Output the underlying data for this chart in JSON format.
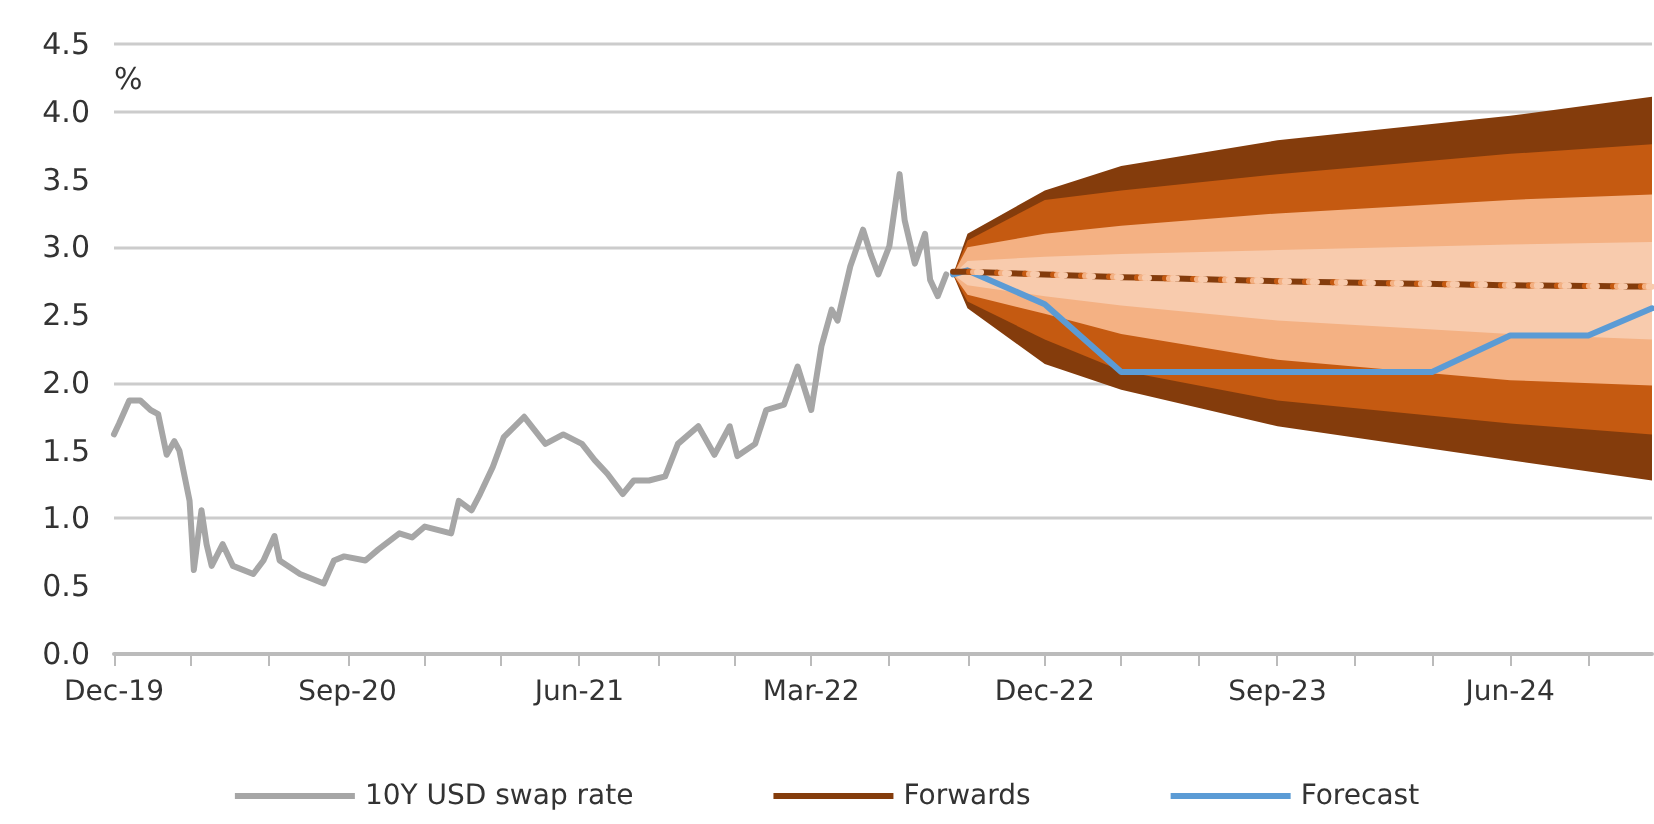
{
  "chart_data": {
    "type": "line",
    "ylabel": "%",
    "marker": "none",
    "grid": "y",
    "legend": "bottom",
    "xlim": [
      "2019-12-01",
      "2024-11-15"
    ],
    "xticks": [
      {
        "value": "2019-12-01",
        "label": "Dec-19"
      },
      {
        "value": "2020-03-01",
        "label": null
      },
      {
        "value": "2020-06-01",
        "label": null
      },
      {
        "value": "2020-09-01",
        "label": "Sep-20"
      },
      {
        "value": "2020-12-01",
        "label": null
      },
      {
        "value": "2021-03-01",
        "label": null
      },
      {
        "value": "2021-06-01",
        "label": "Jun-21"
      },
      {
        "value": "2021-09-01",
        "label": null
      },
      {
        "value": "2021-12-01",
        "label": null
      },
      {
        "value": "2022-03-01",
        "label": "Mar-22"
      },
      {
        "value": "2022-06-01",
        "label": null
      },
      {
        "value": "2022-09-01",
        "label": null
      },
      {
        "value": "2022-12-01",
        "label": "Dec-22"
      },
      {
        "value": "2023-03-01",
        "label": null
      },
      {
        "value": "2023-06-01",
        "label": null
      },
      {
        "value": "2023-09-01",
        "label": "Sep-23"
      },
      {
        "value": "2023-12-01",
        "label": null
      },
      {
        "value": "2024-03-01",
        "label": null
      },
      {
        "value": "2024-06-01",
        "label": "Jun-24"
      },
      {
        "value": "2024-09-01",
        "label": null
      }
    ],
    "ylim": [
      0,
      4.5
    ],
    "yticks": [
      {
        "value": 0,
        "label": "0.0"
      },
      {
        "value": 0.5,
        "label": "0.5"
      },
      {
        "value": 1,
        "label": "1.0"
      },
      {
        "value": 1.5,
        "label": "1.5"
      },
      {
        "value": 2,
        "label": "2.0"
      },
      {
        "value": 2.5,
        "label": "2.5"
      },
      {
        "value": 3,
        "label": "3.0"
      },
      {
        "value": 3.5,
        "label": "3.5"
      },
      {
        "value": 4,
        "label": "4.0"
      },
      {
        "value": 4.5,
        "label": "4.5"
      }
    ],
    "series": [
      {
        "name": "10Y USD swap rate",
        "color": "#a6a6a6",
        "line_style": "solid",
        "x": [
          "2019-12-01",
          "2019-12-07",
          "2019-12-19",
          "2020-01-01",
          "2020-01-13",
          "2020-01-22",
          "2020-02-01",
          "2020-02-10",
          "2020-02-16",
          "2020-02-28",
          "2020-03-04",
          "2020-03-13",
          "2020-03-19",
          "2020-03-25",
          "2020-04-07",
          "2020-04-19",
          "2020-05-13",
          "2020-05-25",
          "2020-06-07",
          "2020-06-13",
          "2020-07-07",
          "2020-08-04",
          "2020-08-16",
          "2020-08-28",
          "2020-09-22",
          "2020-10-07",
          "2020-11-01",
          "2020-11-16",
          "2020-12-01",
          "2021-01-01",
          "2021-01-10",
          "2021-01-25",
          "2021-02-04",
          "2021-02-19",
          "2021-03-04",
          "2021-03-28",
          "2021-04-22",
          "2021-05-13",
          "2021-06-04",
          "2021-06-19",
          "2021-07-04",
          "2021-07-22",
          "2021-08-04",
          "2021-08-22",
          "2021-09-10",
          "2021-09-25",
          "2021-10-19",
          "2021-11-07",
          "2021-11-25",
          "2021-12-04",
          "2021-12-25",
          "2022-01-07",
          "2022-01-28",
          "2022-02-13",
          "2022-03-01",
          "2022-03-13",
          "2022-03-25",
          "2022-04-01",
          "2022-04-16",
          "2022-05-01",
          "2022-05-10",
          "2022-05-19",
          "2022-06-01",
          "2022-06-13",
          "2022-06-19",
          "2022-07-01",
          "2022-07-13",
          "2022-07-19",
          "2022-07-28",
          "2022-08-07"
        ],
        "values": [
          1.62,
          1.7,
          1.87,
          1.87,
          1.8,
          1.77,
          1.47,
          1.57,
          1.5,
          1.13,
          0.62,
          1.06,
          0.81,
          0.65,
          0.81,
          0.65,
          0.59,
          0.69,
          0.87,
          0.69,
          0.59,
          0.52,
          0.69,
          0.72,
          0.69,
          0.77,
          0.89,
          0.86,
          0.94,
          0.89,
          1.13,
          1.06,
          1.18,
          1.38,
          1.6,
          1.75,
          1.55,
          1.62,
          1.55,
          1.43,
          1.33,
          1.18,
          1.28,
          1.28,
          1.31,
          1.55,
          1.68,
          1.47,
          1.68,
          1.46,
          1.55,
          1.8,
          1.84,
          2.12,
          1.8,
          2.27,
          2.54,
          2.46,
          2.86,
          3.13,
          2.95,
          2.8,
          3.01,
          3.54,
          3.2,
          2.88,
          3.1,
          2.76,
          2.64,
          2.8
        ]
      },
      {
        "name": "Forwards",
        "color": "#843c0c",
        "line_style": "dashed",
        "x": [
          "2022-08-15",
          "2022-09-01",
          "2022-12-01",
          "2023-03-01",
          "2023-09-01",
          "2024-06-01",
          "2024-11-15"
        ],
        "values": [
          2.82,
          2.82,
          2.8,
          2.78,
          2.75,
          2.72,
          2.71
        ],
        "upper": [
          2.8,
          3.1,
          3.42,
          3.6,
          3.79,
          3.97,
          4.11
        ],
        "lower": [
          2.8,
          2.55,
          2.14,
          1.95,
          1.68,
          1.43,
          1.28
        ]
      },
      {
        "color": "#c55a11",
        "line_style": "dashed",
        "x": [
          "2022-08-15",
          "2022-09-01",
          "2022-12-01",
          "2023-03-01",
          "2023-09-01",
          "2024-06-01",
          "2024-11-15"
        ],
        "values": [
          2.82,
          2.82,
          2.8,
          2.78,
          2.75,
          2.72,
          2.71
        ],
        "upper": [
          2.8,
          3.05,
          3.35,
          3.42,
          3.54,
          3.69,
          3.76
        ],
        "lower": [
          2.8,
          2.6,
          2.32,
          2.09,
          1.87,
          1.7,
          1.62
        ]
      },
      {
        "color": "#f4b183",
        "line_style": "dashed",
        "x": [
          "2022-08-15",
          "2022-09-01",
          "2022-12-01",
          "2023-03-01",
          "2023-09-01",
          "2024-06-01",
          "2024-11-15"
        ],
        "values": [
          2.82,
          2.82,
          2.8,
          2.78,
          2.75,
          2.72,
          2.71
        ],
        "upper": [
          2.8,
          3.0,
          3.1,
          3.16,
          3.25,
          3.35,
          3.39
        ],
        "lower": [
          2.8,
          2.65,
          2.51,
          2.36,
          2.17,
          2.02,
          1.98
        ]
      },
      {
        "color": "#f8cbad",
        "line_style": "dashed",
        "x": [
          "2022-08-15",
          "2022-09-01",
          "2022-12-01",
          "2023-03-01",
          "2023-09-01",
          "2024-06-01",
          "2024-11-15"
        ],
        "values": [
          2.82,
          2.82,
          2.8,
          2.78,
          2.75,
          2.72,
          2.71
        ],
        "upper": [
          2.8,
          2.9,
          2.93,
          2.95,
          2.98,
          3.02,
          3.04
        ],
        "lower": [
          2.8,
          2.72,
          2.64,
          2.57,
          2.46,
          2.36,
          2.32
        ]
      },
      {
        "name": "Forecast",
        "color": "#5b9bd5",
        "line_style": "solid",
        "x": [
          "2022-08-15",
          "2022-09-01",
          "2022-12-01",
          "2023-03-01",
          "2024-03-01",
          "2024-06-01",
          "2024-09-01",
          "2024-11-15"
        ],
        "values": [
          2.8,
          2.83,
          2.58,
          2.08,
          2.08,
          2.35,
          2.35,
          2.55
        ]
      }
    ]
  }
}
